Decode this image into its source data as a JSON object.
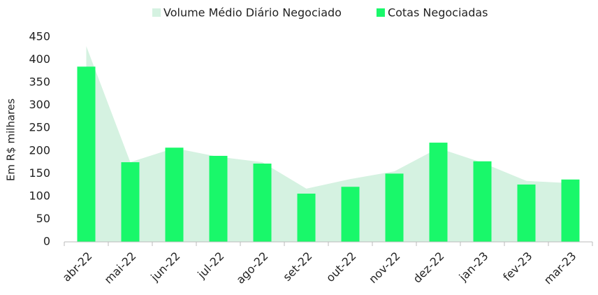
{
  "chart_data": {
    "type": "bar",
    "ylabel": "Em R$ milhares",
    "categories": [
      "abr-22",
      "mai-22",
      "jun-22",
      "jul-22",
      "ago-22",
      "set-22",
      "out-22",
      "nov-22",
      "dez-22",
      "jan-23",
      "fev-23",
      "mar-23"
    ],
    "series": [
      {
        "name": "Volume Médio Diário Negociado",
        "type": "area",
        "color": "#d5f2e1",
        "values": [
          430,
          175,
          206,
          187,
          175,
          117,
          138,
          155,
          206,
          174,
          134,
          129
        ]
      },
      {
        "name": "Cotas Negociadas",
        "type": "bar",
        "color": "#19f86a",
        "values": [
          385,
          175,
          207,
          189,
          172,
          106,
          121,
          150,
          218,
          177,
          126,
          137
        ]
      }
    ],
    "ylim": [
      0,
      450
    ],
    "yticks": [
      0,
      50,
      100,
      150,
      200,
      250,
      300,
      350,
      400,
      450
    ],
    "grid": false,
    "legend": "top"
  }
}
